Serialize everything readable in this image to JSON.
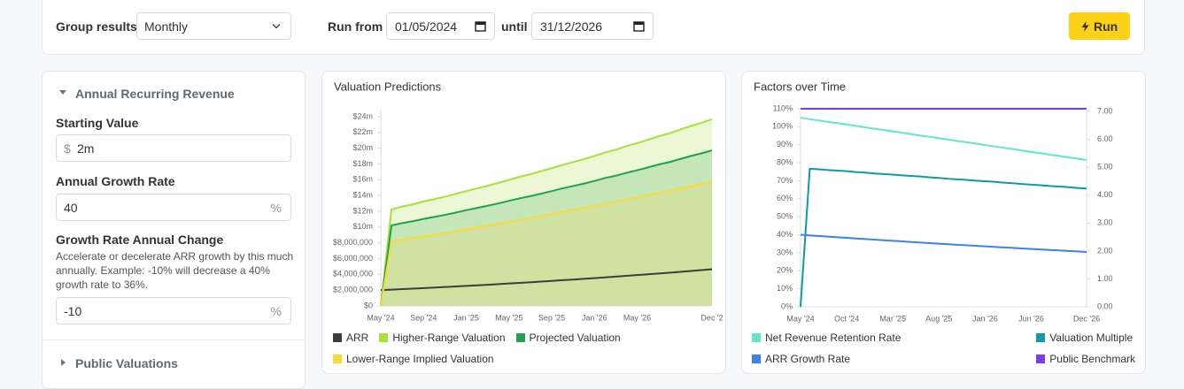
{
  "toolbar": {
    "group_label": "Group results",
    "group_value": "Monthly",
    "run_from_label": "Run from",
    "run_from": "01/05/2024",
    "until_label": "until",
    "until": "31/12/2026",
    "run_button": "Run"
  },
  "sidebar": {
    "sections": [
      {
        "title": "Annual Recurring Revenue",
        "fields": [
          {
            "label": "Starting Value",
            "prefix": "$",
            "value": "2m"
          },
          {
            "label": "Annual Growth Rate",
            "value": "40",
            "suffix": "%"
          },
          {
            "label": "Growth Rate Annual Change",
            "description": "Accelerate or decelerate ARR growth by this much annually. Example: -10% will decrease a 40% growth rate to 36%.",
            "value": "-10",
            "suffix": "%"
          }
        ]
      },
      {
        "title": "Public Valuations"
      }
    ]
  },
  "chart_data": [
    {
      "type": "line",
      "title": "Valuation Predictions",
      "grid": false,
      "categories": [
        "May '24",
        null,
        null,
        null,
        "Sep '24",
        null,
        null,
        null,
        "Jan '25",
        null,
        null,
        null,
        "May '25",
        null,
        null,
        null,
        "Sep '25",
        null,
        null,
        null,
        "Jan '26",
        null,
        null,
        null,
        "May '26",
        null,
        null,
        null,
        null,
        null,
        null,
        "Dec '2"
      ],
      "ylim": [
        0,
        25000000
      ],
      "yticks": [
        {
          "value": 0,
          "label": "$0"
        },
        {
          "value": 2000000,
          "label": "$2,000,000"
        },
        {
          "value": 4000000,
          "label": "$4,000,000"
        },
        {
          "value": 6000000,
          "label": "$6,000,000"
        },
        {
          "value": 8000000,
          "label": "$8,000,000"
        },
        {
          "value": 10000000,
          "label": "$10m"
        },
        {
          "value": 12000000,
          "label": "$12m"
        },
        {
          "value": 14000000,
          "label": "$14m"
        },
        {
          "value": 16000000,
          "label": "$16m"
        },
        {
          "value": 18000000,
          "label": "$18m"
        },
        {
          "value": 20000000,
          "label": "$20m"
        },
        {
          "value": 22000000,
          "label": "$22m"
        },
        {
          "value": 24000000,
          "label": "$24m"
        }
      ],
      "series": [
        {
          "name": "ARR",
          "color": "#3d3d3d",
          "values": [
            2000000,
            2060000,
            2130000,
            2190000,
            2260000,
            2320000,
            2390000,
            2460000,
            2540000,
            2610000,
            2680000,
            2760000,
            2840000,
            2920000,
            3000000,
            3080000,
            3170000,
            3260000,
            3340000,
            3430000,
            3520000,
            3620000,
            3710000,
            3810000,
            3910000,
            4010000,
            4110000,
            4210000,
            4320000,
            4430000,
            4540000,
            4650000
          ]
        },
        {
          "name": "Higher-Range Valuation",
          "color": "#a6e23a",
          "fill": "#ecf7d6",
          "values": [
            0,
            12240000,
            12600000,
            12880000,
            13240000,
            13540000,
            13850000,
            14200000,
            14570000,
            14900000,
            15240000,
            15600000,
            15980000,
            16370000,
            16700000,
            17080000,
            17460000,
            17880000,
            18240000,
            18600000,
            19010000,
            19460000,
            19810000,
            20260000,
            20640000,
            21070000,
            21500000,
            21880000,
            22340000,
            22800000,
            23210000,
            23660000
          ]
        },
        {
          "name": "Projected Valuation",
          "color": "#1fa24a",
          "fill": "#c4e6b8",
          "values": [
            0,
            10200000,
            10500000,
            10730000,
            11030000,
            11280000,
            11540000,
            11830000,
            12140000,
            12420000,
            12700000,
            13000000,
            13320000,
            13640000,
            13920000,
            14230000,
            14550000,
            14900000,
            15200000,
            15500000,
            15840000,
            16220000,
            16510000,
            16880000,
            17200000,
            17560000,
            17920000,
            18230000,
            18620000,
            19000000,
            19340000,
            19720000
          ]
        },
        {
          "name": "Lower-Range Implied Valuation",
          "color": "#fcd93a",
          "fill": "#cfe2a1",
          "values": [
            0,
            8160000,
            8400000,
            8580000,
            8820000,
            9020000,
            9230000,
            9460000,
            9710000,
            9940000,
            10160000,
            10400000,
            10660000,
            10910000,
            11140000,
            11380000,
            11640000,
            11920000,
            12160000,
            12400000,
            12670000,
            12980000,
            13210000,
            13500000,
            13760000,
            14050000,
            14340000,
            14580000,
            14900000,
            15200000,
            15470000,
            15780000
          ]
        }
      ]
    },
    {
      "type": "line",
      "title": "Factors over Time",
      "grid": false,
      "categories": [
        "May '24",
        null,
        null,
        null,
        null,
        "Oct '24",
        null,
        null,
        null,
        null,
        "Mar '25",
        null,
        null,
        null,
        null,
        "Aug '25",
        null,
        null,
        null,
        null,
        "Jan '26",
        null,
        null,
        null,
        null,
        "Jun '26",
        null,
        null,
        null,
        null,
        null,
        "Dec '26"
      ],
      "ylim": [
        0,
        110
      ],
      "yticks": [
        {
          "value": 0,
          "label": "0%"
        },
        {
          "value": 10,
          "label": "10%"
        },
        {
          "value": 20,
          "label": "20%"
        },
        {
          "value": 30,
          "label": "30%"
        },
        {
          "value": 40,
          "label": "40%"
        },
        {
          "value": 50,
          "label": "50%"
        },
        {
          "value": 60,
          "label": "60%"
        },
        {
          "value": 70,
          "label": "70%"
        },
        {
          "value": 80,
          "label": "80%"
        },
        {
          "value": 90,
          "label": "90%"
        },
        {
          "value": 100,
          "label": "100%"
        },
        {
          "value": 110,
          "label": "110%"
        }
      ],
      "y2lim": [
        0,
        7.1
      ],
      "y2ticks": [
        {
          "value": 0,
          "label": "0.00"
        },
        {
          "value": 1,
          "label": "1.00"
        },
        {
          "value": 2,
          "label": "2.00"
        },
        {
          "value": 3,
          "label": "3.00"
        },
        {
          "value": 4,
          "label": "4.00"
        },
        {
          "value": 5,
          "label": "5.00"
        },
        {
          "value": 6,
          "label": "6.00"
        },
        {
          "value": 7,
          "label": "7.00"
        }
      ],
      "series": [
        {
          "name": "Net Revenue Retention Rate",
          "color": "#62e6c9",
          "values": [
            105.0,
            104.2,
            103.5,
            102.7,
            102.0,
            101.2,
            100.5,
            99.7,
            98.9,
            98.2,
            97.4,
            96.7,
            95.9,
            95.1,
            94.4,
            93.6,
            92.9,
            92.1,
            91.4,
            90.6,
            89.8,
            89.1,
            88.3,
            87.6,
            86.8,
            86.0,
            85.3,
            84.5,
            83.8,
            83.0,
            82.3,
            81.5
          ]
        },
        {
          "name": "Valuation Multiple",
          "color": "#0f98a8",
          "axis": "y2",
          "values": [
            0,
            4.95,
            4.93,
            4.9,
            4.88,
            4.86,
            4.83,
            4.81,
            4.78,
            4.76,
            4.74,
            4.71,
            4.69,
            4.67,
            4.64,
            4.62,
            4.59,
            4.57,
            4.55,
            4.52,
            4.5,
            4.48,
            4.45,
            4.43,
            4.4,
            4.38,
            4.36,
            4.33,
            4.31,
            4.29,
            4.26,
            4.24
          ]
        },
        {
          "name": "ARR Growth Rate",
          "color": "#3b82f0",
          "values": [
            40,
            39.65,
            39.3,
            38.96,
            38.62,
            38.29,
            37.95,
            37.62,
            37.29,
            36.97,
            36.65,
            36.33,
            36.0,
            35.69,
            35.38,
            35.07,
            34.76,
            34.46,
            34.16,
            33.86,
            33.57,
            33.27,
            32.98,
            32.7,
            32.4,
            32.12,
            31.84,
            31.56,
            31.29,
            31.01,
            30.74,
            30.47
          ]
        },
        {
          "name": "Public Benchmark",
          "color": "#7c3aed",
          "axis": "y2",
          "values": [
            7.1,
            7.1,
            7.1,
            7.1,
            7.1,
            7.1,
            7.1,
            7.1,
            7.1,
            7.1,
            7.1,
            7.1,
            7.1,
            7.1,
            7.1,
            7.1,
            7.1,
            7.1,
            7.1,
            7.1,
            7.1,
            7.1,
            7.1,
            7.1,
            7.1,
            7.1,
            7.1,
            7.1,
            7.1,
            7.1,
            7.1,
            7.1
          ]
        }
      ]
    }
  ]
}
